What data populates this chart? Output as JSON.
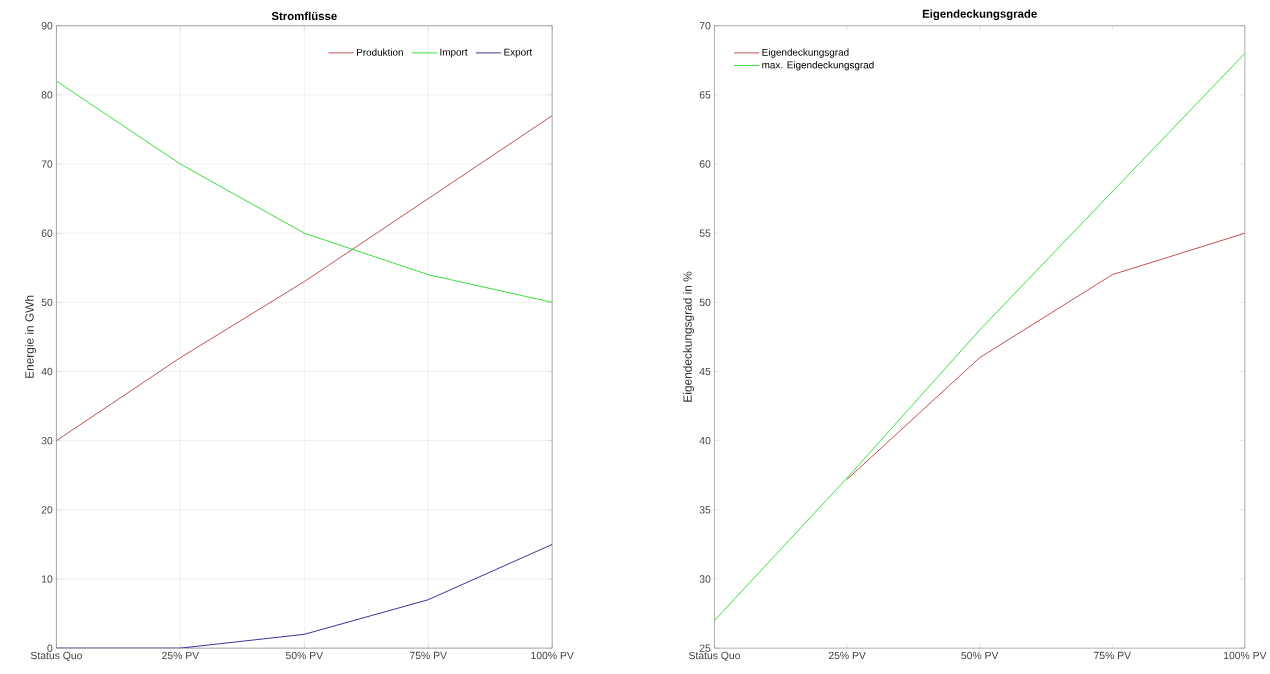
{
  "chart_data": [
    {
      "type": "line",
      "title": "Stromflüsse",
      "ylabel": "Energie in GWh",
      "categories": [
        "Status Quo",
        "25% PV",
        "50% PV",
        "75% PV",
        "100% PV"
      ],
      "series": [
        {
          "name": "Produktion",
          "color": "#c03a3a",
          "values": [
            30,
            42,
            53,
            65,
            77
          ]
        },
        {
          "name": "Import",
          "color": "#22dd22",
          "values": [
            82,
            70,
            60,
            54,
            50
          ]
        },
        {
          "name": "Export",
          "color": "#1c1c90",
          "values": [
            0,
            0,
            2,
            7,
            15
          ]
        }
      ],
      "ylim": [
        0,
        90
      ],
      "yticks": [
        0,
        10,
        20,
        30,
        40,
        50,
        60,
        70,
        80,
        90
      ],
      "grid": true,
      "legend": "top right"
    },
    {
      "type": "line",
      "title": "Eigendeckungsgrade",
      "ylabel": "Eigendeckungsgrad in %",
      "categories": [
        "Status Quo",
        "25% PV",
        "50% PV",
        "75% PV",
        "100% PV"
      ],
      "series": [
        {
          "name": "Eigendeckungsgrad",
          "color": "#c03a3a",
          "values": [
            null,
            37.2,
            46,
            52,
            55
          ]
        },
        {
          "name": "max. Eigendeckungsgrad",
          "color": "#22dd22",
          "values": [
            27,
            37.3,
            48,
            58,
            68
          ]
        }
      ],
      "ylim": [
        25,
        70
      ],
      "yticks": [
        25,
        30,
        35,
        40,
        45,
        50,
        55,
        60,
        65,
        70
      ],
      "legend": "top left"
    }
  ]
}
